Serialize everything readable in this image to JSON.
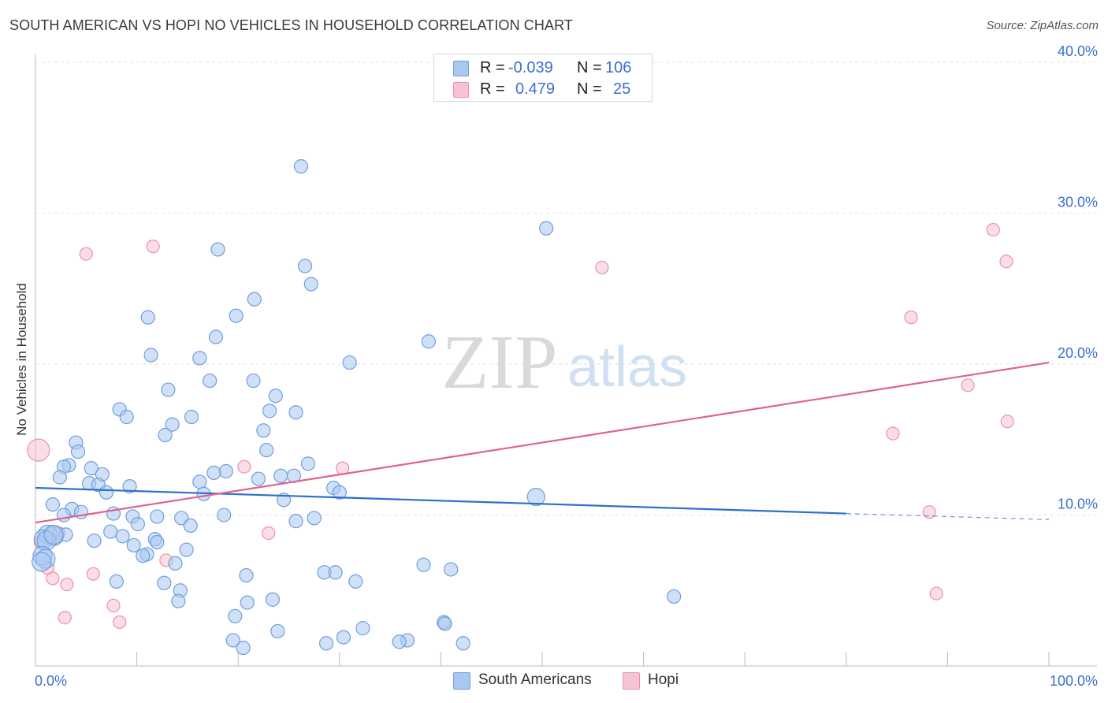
{
  "title": "SOUTH AMERICAN VS HOPI NO VEHICLES IN HOUSEHOLD CORRELATION CHART",
  "source": "Source: ZipAtlas.com",
  "watermark": {
    "zip": "ZIP",
    "atlas": "atlas"
  },
  "colors": {
    "blue_fill": "#a9c8f0",
    "blue_stroke": "#6f9fde",
    "blue_line": "#2f6fce",
    "pink_fill": "#f6c3d2",
    "pink_stroke": "#ee8fad",
    "pink_line": "#e0628f",
    "axis_text": "#3a6fd0",
    "grid": "#e2e2e2"
  },
  "legend": {
    "rows": [
      {
        "r_label": "R =",
        "r_value": "-0.039",
        "n_label": "N =",
        "n_value": "106"
      },
      {
        "r_label": "R =",
        "r_value": "0.479",
        "n_label": "N =",
        "n_value": "25"
      }
    ]
  },
  "bottom_legend": {
    "south_americans": "South Americans",
    "hopi": "Hopi"
  },
  "chart_data": {
    "type": "scatter",
    "title": "SOUTH AMERICAN VS HOPI NO VEHICLES IN HOUSEHOLD CORRELATION CHART",
    "xlabel": "",
    "ylabel": "No Vehicles in Household",
    "xlim": [
      0,
      100
    ],
    "ylim": [
      0,
      40
    ],
    "x_tick_labels": [
      "0.0%",
      "100.0%"
    ],
    "y_ticks": [
      10,
      20,
      30,
      40
    ],
    "y_tick_labels": [
      "10.0%",
      "20.0%",
      "30.0%",
      "40.0%"
    ],
    "grid": true,
    "legend_position": "top-center",
    "series": [
      {
        "name": "South Americans",
        "color": "#a9c8f0",
        "r": -0.039,
        "n": 106,
        "trend": {
          "x": [
            0,
            80
          ],
          "y": [
            11.8,
            10.1
          ],
          "dashed_to": [
            100,
            9.7
          ]
        },
        "points": [
          [
            26.2,
            33.1
          ],
          [
            50.4,
            29.0
          ],
          [
            18.0,
            27.6
          ],
          [
            26.6,
            26.5
          ],
          [
            27.2,
            25.3
          ],
          [
            21.6,
            24.3
          ],
          [
            11.1,
            23.1
          ],
          [
            19.8,
            23.2
          ],
          [
            17.8,
            21.8
          ],
          [
            38.8,
            21.5
          ],
          [
            11.4,
            20.6
          ],
          [
            16.2,
            20.4
          ],
          [
            31.0,
            20.1
          ],
          [
            17.2,
            18.9
          ],
          [
            21.5,
            18.9
          ],
          [
            13.1,
            18.3
          ],
          [
            23.7,
            17.9
          ],
          [
            8.3,
            17.0
          ],
          [
            23.1,
            16.9
          ],
          [
            25.7,
            16.8
          ],
          [
            15.4,
            16.5
          ],
          [
            9.0,
            16.5
          ],
          [
            13.5,
            16.0
          ],
          [
            22.5,
            15.6
          ],
          [
            12.8,
            15.3
          ],
          [
            4.0,
            14.8
          ],
          [
            22.8,
            14.3
          ],
          [
            4.2,
            14.2
          ],
          [
            3.3,
            13.3
          ],
          [
            2.8,
            13.2
          ],
          [
            26.9,
            13.4
          ],
          [
            18.8,
            12.9
          ],
          [
            17.6,
            12.8
          ],
          [
            5.5,
            13.1
          ],
          [
            6.6,
            12.7
          ],
          [
            2.4,
            12.5
          ],
          [
            24.2,
            12.6
          ],
          [
            25.5,
            12.6
          ],
          [
            22.0,
            12.4
          ],
          [
            16.2,
            12.2
          ],
          [
            5.3,
            12.1
          ],
          [
            6.2,
            12.0
          ],
          [
            9.3,
            11.9
          ],
          [
            29.4,
            11.8
          ],
          [
            7.0,
            11.5
          ],
          [
            30.0,
            11.5
          ],
          [
            16.6,
            11.4
          ],
          [
            24.5,
            11.0
          ],
          [
            49.4,
            11.2
          ],
          [
            1.7,
            10.7
          ],
          [
            3.6,
            10.4
          ],
          [
            4.5,
            10.2
          ],
          [
            7.7,
            10.1
          ],
          [
            2.8,
            10.0
          ],
          [
            9.6,
            9.9
          ],
          [
            12.0,
            9.9
          ],
          [
            18.6,
            10.0
          ],
          [
            14.4,
            9.8
          ],
          [
            27.5,
            9.8
          ],
          [
            25.7,
            9.6
          ],
          [
            10.1,
            9.4
          ],
          [
            15.3,
            9.3
          ],
          [
            7.4,
            8.9
          ],
          [
            1.2,
            8.7
          ],
          [
            3.0,
            8.7
          ],
          [
            1.8,
            8.6
          ],
          [
            8.6,
            8.6
          ],
          [
            0.8,
            8.4
          ],
          [
            1.1,
            8.3
          ],
          [
            11.8,
            8.4
          ],
          [
            5.8,
            8.3
          ],
          [
            12.0,
            8.2
          ],
          [
            9.7,
            8.0
          ],
          [
            14.9,
            7.7
          ],
          [
            11.0,
            7.4
          ],
          [
            10.6,
            7.3
          ],
          [
            0.7,
            7.3
          ],
          [
            1.0,
            7.1
          ],
          [
            0.6,
            6.9
          ],
          [
            13.8,
            6.8
          ],
          [
            38.3,
            6.7
          ],
          [
            41.0,
            6.4
          ],
          [
            28.5,
            6.2
          ],
          [
            29.6,
            6.2
          ],
          [
            20.8,
            6.0
          ],
          [
            31.6,
            5.6
          ],
          [
            12.7,
            5.5
          ],
          [
            8.0,
            5.6
          ],
          [
            14.3,
            5.0
          ],
          [
            63.0,
            4.6
          ],
          [
            23.4,
            4.4
          ],
          [
            14.1,
            4.3
          ],
          [
            20.9,
            4.2
          ],
          [
            19.7,
            3.3
          ],
          [
            40.3,
            2.9
          ],
          [
            40.4,
            2.8
          ],
          [
            32.3,
            2.5
          ],
          [
            23.9,
            2.3
          ],
          [
            30.4,
            1.9
          ],
          [
            19.5,
            1.7
          ],
          [
            36.7,
            1.7
          ],
          [
            35.9,
            1.6
          ],
          [
            28.7,
            1.5
          ],
          [
            42.2,
            1.5
          ],
          [
            20.5,
            1.2
          ],
          [
            1.8,
            8.7
          ]
        ]
      },
      {
        "name": "Hopi",
        "color": "#f6c3d2",
        "r": 0.479,
        "n": 25,
        "trend": {
          "x": [
            0,
            100
          ],
          "y": [
            9.5,
            20.1
          ]
        },
        "points": [
          [
            94.5,
            28.9
          ],
          [
            5.0,
            27.3
          ],
          [
            11.6,
            27.8
          ],
          [
            55.9,
            26.4
          ],
          [
            95.8,
            26.8
          ],
          [
            86.4,
            23.1
          ],
          [
            92.0,
            18.6
          ],
          [
            95.9,
            16.2
          ],
          [
            84.6,
            15.4
          ],
          [
            0.3,
            14.3
          ],
          [
            20.6,
            13.2
          ],
          [
            30.3,
            13.1
          ],
          [
            88.2,
            10.2
          ],
          [
            23.0,
            8.8
          ],
          [
            2.3,
            8.8
          ],
          [
            0.5,
            8.2
          ],
          [
            12.9,
            7.0
          ],
          [
            1.2,
            6.5
          ],
          [
            5.7,
            6.1
          ],
          [
            1.7,
            5.8
          ],
          [
            3.1,
            5.4
          ],
          [
            88.9,
            4.8
          ],
          [
            7.7,
            4.0
          ],
          [
            2.9,
            3.2
          ],
          [
            8.3,
            2.9
          ]
        ]
      }
    ]
  }
}
